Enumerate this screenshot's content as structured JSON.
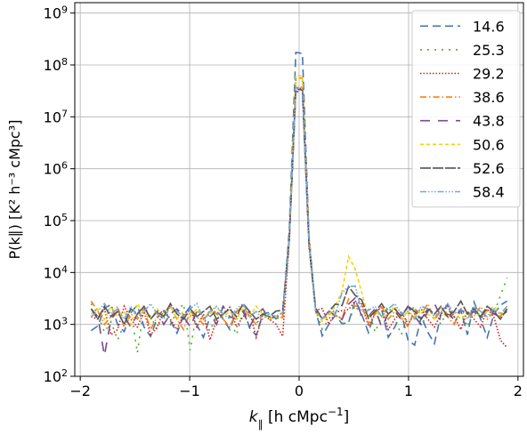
{
  "chart_data": {
    "type": "line",
    "xlabel_base": "k",
    "xlabel_sub": "∥",
    "xlabel_unit": " [h cMpc",
    "xlabel_unit_exp": "−1",
    "xlabel_unit_close": "]",
    "ylabel_text": "P(k∥) [K² h⁻³ cMpc³]",
    "x_ticks": [
      -2,
      -1,
      0,
      1,
      2
    ],
    "x_tick_labels": [
      "−2",
      "−1",
      "0",
      "1",
      "2"
    ],
    "y_tick_exponents": [
      2,
      3,
      4,
      5,
      6,
      7,
      8,
      9
    ],
    "y_tick_base": "10",
    "xlim": [
      -2.05,
      2.05
    ],
    "ylim_log10": [
      2,
      9.2
    ],
    "log_y": true,
    "grid": true,
    "legend_location": "upper right",
    "k_points": 64,
    "k_min": -1.9,
    "k_max": 1.9,
    "series": [
      {
        "name": "14.6",
        "color": "#4575b4",
        "dash": "9,5",
        "peak": 8.88,
        "hump": 0.3,
        "fluct": [
          -0.17,
          -0.08,
          0.25,
          0.34,
          -0.05,
          -0.19,
          0.18,
          0.32,
          -0.1,
          -0.28,
          0.07,
          0.25,
          0.02,
          -0.22,
          0.12,
          0.3,
          -0.06,
          -0.3,
          0.1,
          0.22,
          0.05,
          -0.15,
          0.2,
          0.28,
          -0.12,
          -0.26,
          0.15,
          0.18,
          0.05,
          -0.08,
          0.04,
          0.1,
          0.08,
          -0.06,
          0.02,
          -0.28,
          -0.05,
          0.1,
          -0.18,
          -0.3,
          0.18,
          0.06,
          -0.22,
          0.2,
          0.24,
          -0.3,
          -0.1,
          0.16,
          -0.35,
          -0.45,
          0.1,
          -0.2,
          -0.42,
          0.15,
          0.34,
          -0.04,
          0.22,
          -0.25,
          0.38,
          0.05,
          -0.3,
          0.14,
          0.32,
          0.4
        ]
      },
      {
        "name": "25.3",
        "color": "#4daf2a",
        "dash": "2,6",
        "peak": 8.25,
        "hump": 0.15,
        "fluct": [
          0.35,
          0.15,
          -0.2,
          0.0,
          -0.35,
          -0.05,
          0.25,
          -0.6,
          0.3,
          0.1,
          -0.15,
          0.2,
          -0.05,
          0.2,
          0.35,
          -0.55,
          0.22,
          0.05,
          -0.18,
          0.15,
          0.3,
          0.05,
          -0.25,
          0.2,
          0.1,
          -0.05,
          0.2,
          0.1,
          0.05,
          -0.05,
          0.05,
          0.12,
          0.1,
          -0.02,
          0.05,
          -0.15,
          0.05,
          0.25,
          -0.1,
          -0.15,
          0.2,
          0.05,
          0.25,
          -0.2,
          0.1,
          0.3,
          0.05,
          -0.25,
          0.15,
          0.3,
          -0.08,
          0.2,
          0.15,
          -0.05,
          0.25,
          0.1,
          0.2,
          -0.1,
          0.3,
          0.05,
          0.25,
          0.15,
          0.5,
          0.85
        ]
      },
      {
        "name": "29.2",
        "color": "#d7191c",
        "dash": "1.5,2",
        "peak": 8.1,
        "hump": 0.35,
        "fluct": [
          0.1,
          0.05,
          0.25,
          -0.25,
          -0.15,
          0.3,
          0.05,
          -0.1,
          0.2,
          -0.25,
          -0.1,
          0.22,
          0.05,
          -0.15,
          0.15,
          0.25,
          -0.1,
          0.15,
          -0.35,
          0.05,
          0.15,
          0.28,
          -0.1,
          0.1,
          0.2,
          -0.3,
          0.15,
          0.05,
          -0.05,
          -0.45,
          0.05,
          0.1,
          0.08,
          -0.05,
          0.05,
          0.25,
          -0.05,
          0.15,
          0.05,
          -0.1,
          0.12,
          0.25,
          -0.1,
          0.15,
          0.3,
          -0.15,
          0.05,
          0.2,
          -0.05,
          0.15,
          0.25,
          0.05,
          -0.1,
          0.15,
          0.3,
          0.1,
          -0.15,
          0.2,
          0.05,
          -0.1,
          0.25,
          0.1,
          -0.35,
          -0.5
        ]
      },
      {
        "name": "38.6",
        "color": "#ff7f0e",
        "dash": "7,3,1.5,3",
        "peak": 8.32,
        "hump": 0.25,
        "fluct": [
          0.4,
          0.2,
          -0.05,
          0.1,
          0.3,
          -0.1,
          0.15,
          0.05,
          0.25,
          -0.15,
          0.1,
          0.2,
          0.3,
          0.05,
          -0.15,
          0.2,
          0.1,
          -0.05,
          0.25,
          0.15,
          0.05,
          -0.1,
          0.2,
          0.3,
          0.1,
          -0.05,
          0.15,
          0.05,
          0.1,
          -0.1,
          0.05,
          0.08,
          0.1,
          0.0,
          0.05,
          0.05,
          0.15,
          0.1,
          -0.05,
          0.2,
          0.1,
          0.25,
          -0.05,
          0.15,
          0.3,
          0.05,
          0.2,
          0.1,
          -0.1,
          0.25,
          0.15,
          0.35,
          0.05,
          0.2,
          0.1,
          -0.05,
          0.25,
          0.15,
          0.1,
          0.3,
          0.05,
          0.2,
          0.1,
          0.3
        ]
      },
      {
        "name": "43.8",
        "color": "#7b4a8e",
        "dash": "11,9",
        "peak": 8.02,
        "hump": 0.2,
        "fluct": [
          0.25,
          0.1,
          -0.65,
          0.05,
          0.2,
          0.1,
          -0.1,
          0.15,
          0.3,
          0.05,
          0.2,
          -0.05,
          0.15,
          0.25,
          0.1,
          -0.1,
          0.2,
          0.05,
          0.15,
          -0.05,
          0.3,
          0.1,
          0.05,
          0.2,
          -0.1,
          0.15,
          0.25,
          0.05,
          0.1,
          -0.05,
          0.05,
          0.1,
          0.08,
          0.02,
          0.05,
          0.05,
          0.2,
          0.1,
          -0.05,
          0.15,
          0.3,
          0.05,
          0.1,
          0.25,
          -0.1,
          0.15,
          0.2,
          0.05,
          0.3,
          0.1,
          -0.05,
          0.2,
          0.35,
          0.1,
          0.15,
          0.05,
          0.25,
          0.1,
          0.2,
          0.05,
          0.3,
          0.15,
          0.1,
          0.2
        ]
      },
      {
        "name": "50.6",
        "color": "#f5d400",
        "dash": "4,3",
        "peak": 8.38,
        "hump": 1.15,
        "fluct": [
          0.15,
          0.25,
          0.05,
          0.3,
          0.1,
          0.2,
          -0.05,
          0.35,
          0.15,
          0.05,
          0.25,
          0.1,
          0.3,
          0.05,
          0.2,
          0.1,
          0.25,
          0.05,
          0.15,
          0.3,
          0.1,
          0.2,
          0.05,
          0.25,
          0.1,
          0.3,
          0.15,
          0.05,
          0.1,
          0.0,
          0.05,
          0.1,
          0.08,
          0.05,
          0.05,
          0.0,
          0.1,
          0.2,
          0.05,
          0.15,
          0.1,
          0.25,
          0.05,
          0.2,
          0.1,
          0.15,
          0.3,
          0.05,
          0.2,
          0.1,
          0.25,
          0.15,
          0.05,
          0.3,
          0.1,
          0.2,
          0.05,
          0.15,
          0.25,
          0.1,
          0.2,
          0.3,
          0.15,
          0.25
        ]
      },
      {
        "name": "52.6",
        "color": "#555555",
        "dash": "12,2",
        "peak": 8.05,
        "hump": 0.45,
        "fluct": [
          0.25,
          0.05,
          0.3,
          0.1,
          0.2,
          -0.05,
          0.25,
          0.15,
          0.3,
          0.05,
          0.2,
          0.1,
          0.35,
          0.15,
          0.05,
          0.25,
          0.1,
          0.2,
          0.3,
          0.05,
          0.15,
          0.25,
          0.1,
          0.35,
          0.2,
          0.05,
          0.15,
          0.1,
          0.2,
          0.05,
          0.1,
          0.12,
          0.1,
          0.05,
          0.1,
          0.05,
          0.2,
          0.3,
          0.1,
          0.25,
          0.15,
          0.3,
          0.05,
          0.2,
          0.35,
          0.15,
          0.25,
          0.1,
          0.3,
          0.2,
          0.05,
          0.25,
          0.15,
          0.3,
          0.1,
          0.2,
          0.4,
          0.15,
          0.25,
          0.1,
          0.3,
          0.2,
          0.05,
          0.25
        ]
      },
      {
        "name": "58.4",
        "color": "#6fa8dc",
        "dash": "7,2,1.5,2,1.5,2,1.5,2",
        "peak": 8.12,
        "hump": 0.55,
        "fluct": [
          0.1,
          0.2,
          0.35,
          0.15,
          0.25,
          0.05,
          0.3,
          0.1,
          0.2,
          0.35,
          0.15,
          0.05,
          0.3,
          0.2,
          0.1,
          0.25,
          0.35,
          0.05,
          0.2,
          0.3,
          0.15,
          0.05,
          0.25,
          0.35,
          0.1,
          0.2,
          0.05,
          0.15,
          0.1,
          0.0,
          0.05,
          0.08,
          0.1,
          0.02,
          0.05,
          0.05,
          0.2,
          0.1,
          0.3,
          0.15,
          0.25,
          0.05,
          0.2,
          0.3,
          0.1,
          0.25,
          0.35,
          0.15,
          0.2,
          0.05,
          0.3,
          0.25,
          0.1,
          0.2,
          0.35,
          0.15,
          0.25,
          0.05,
          0.3,
          0.2,
          0.1,
          0.25,
          0.15,
          0.3
        ]
      }
    ]
  }
}
